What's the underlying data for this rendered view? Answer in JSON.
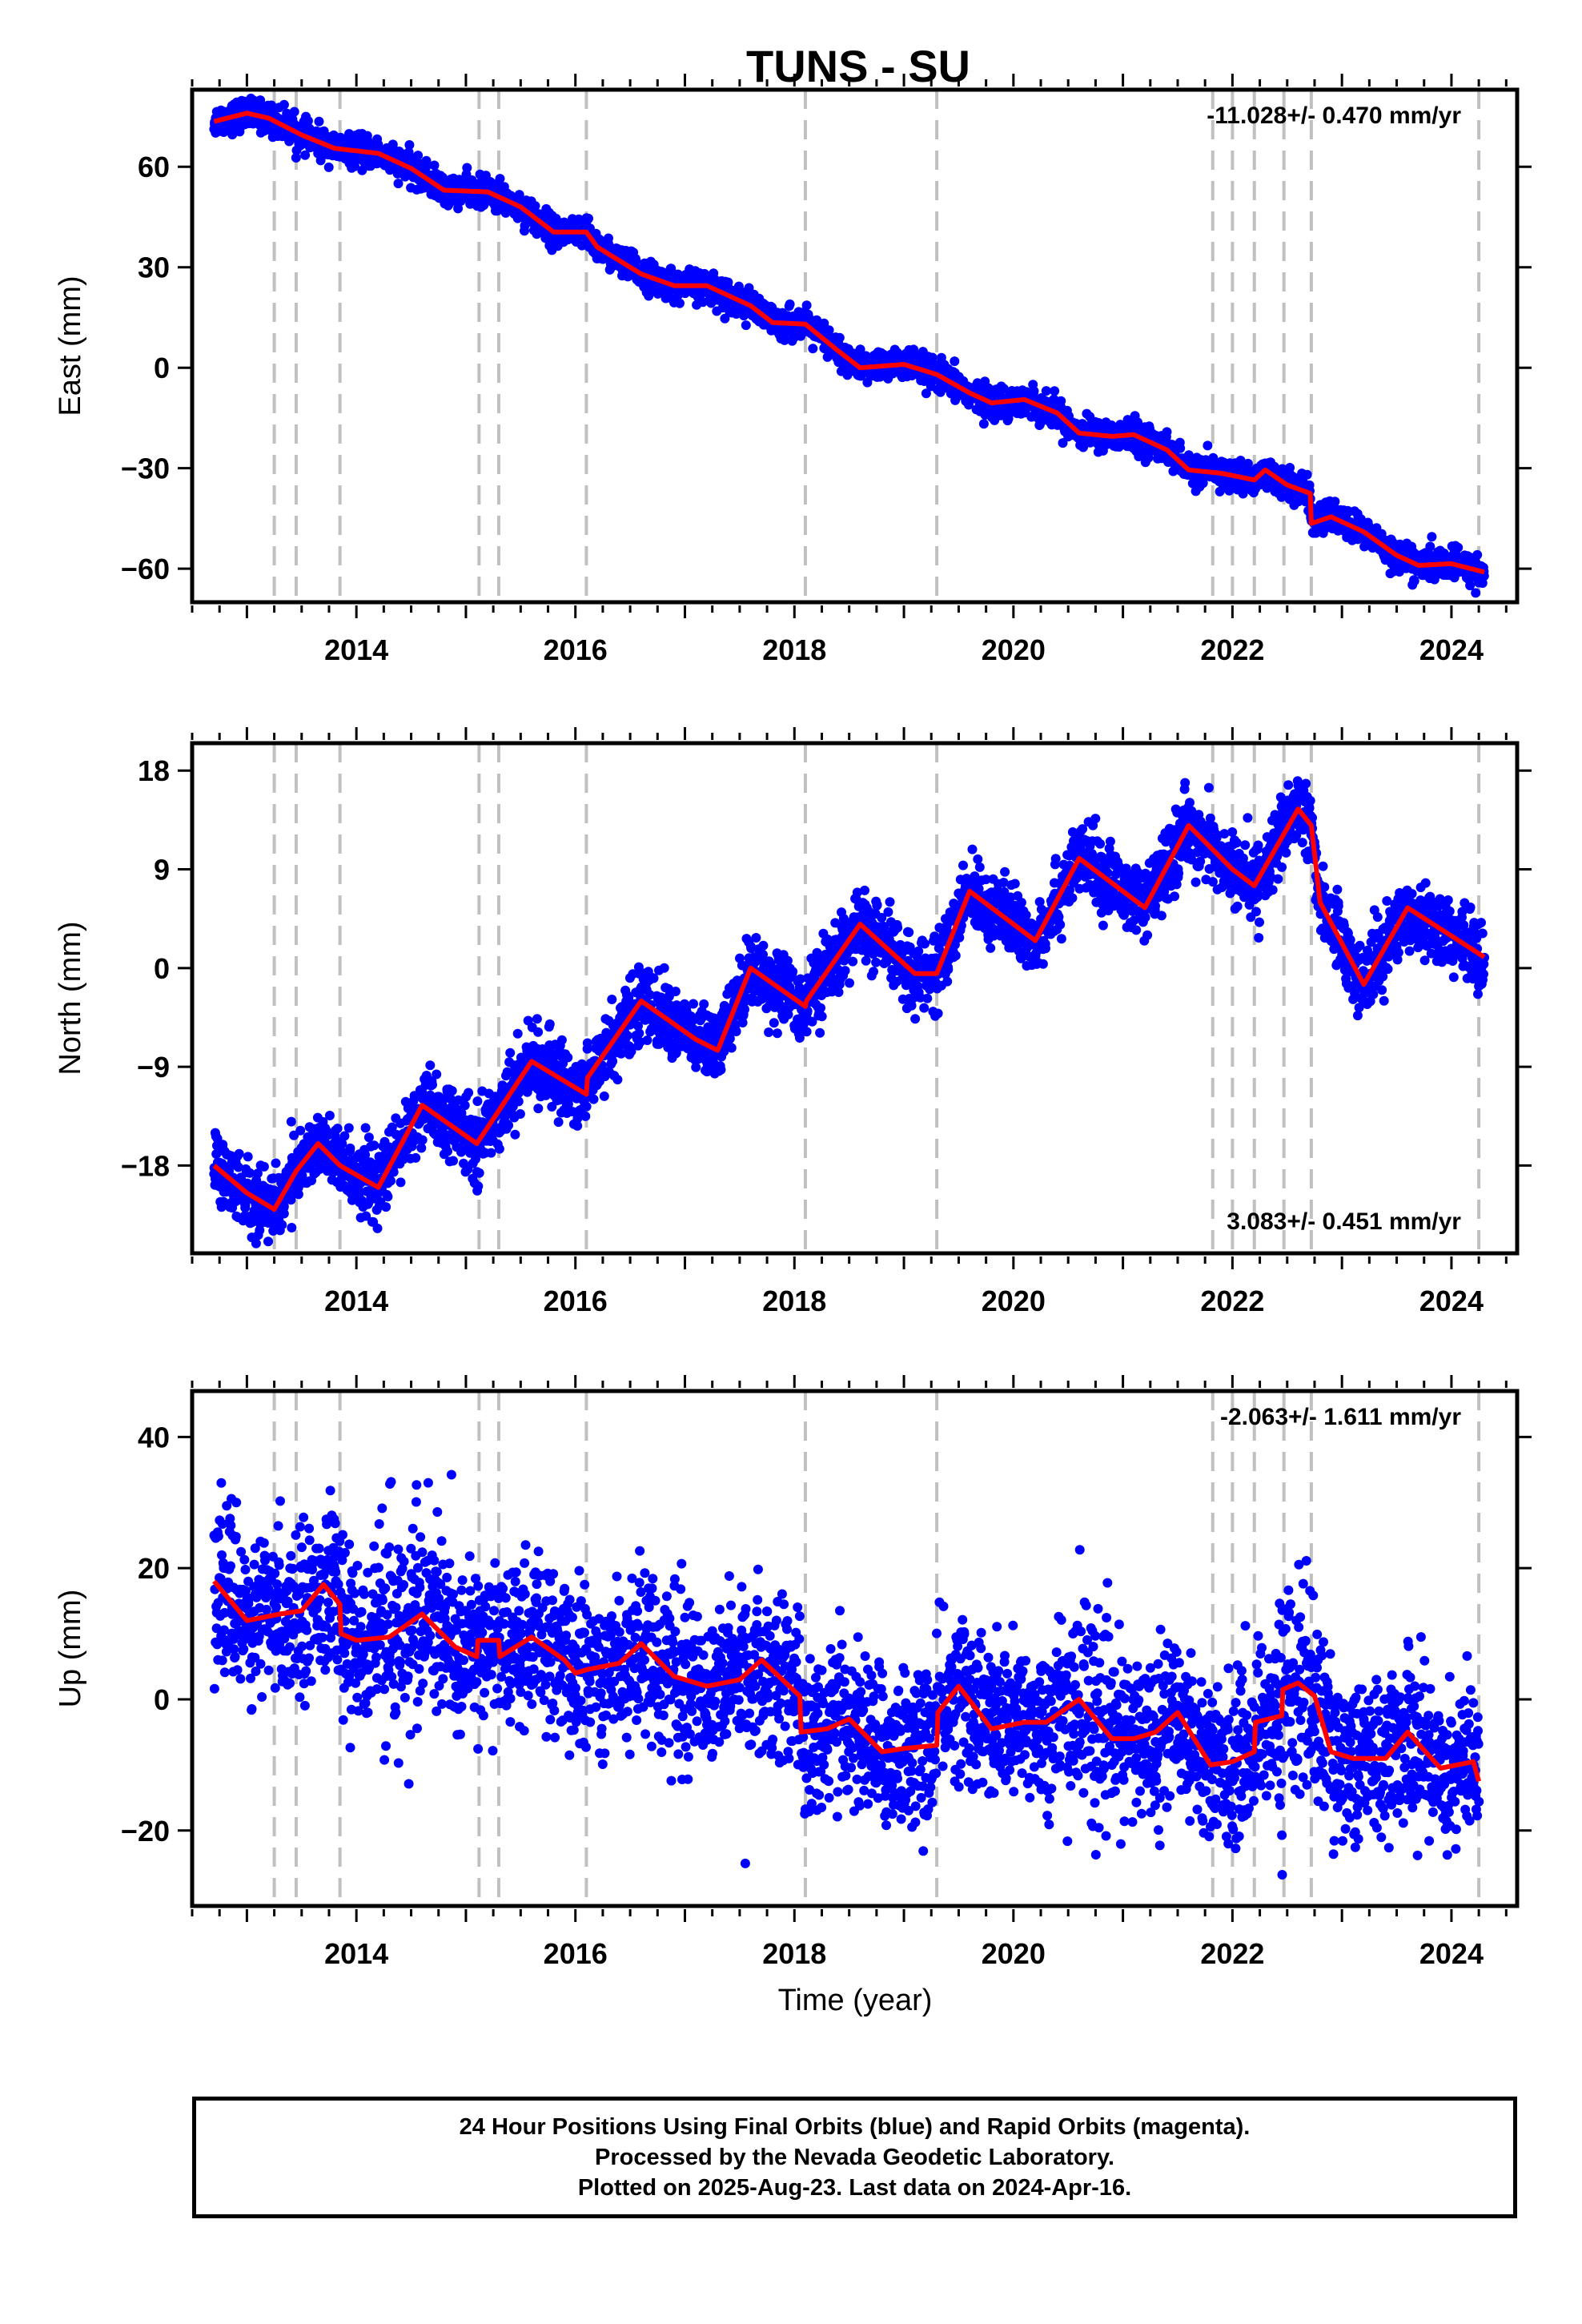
{
  "title": "TUNS - SU",
  "xlabel": "Time (year)",
  "footer": {
    "line1": "24 Hour Positions Using Final Orbits (blue) and Rapid Orbits (magenta).",
    "line2": "Processed by the Nevada Geodetic Laboratory.",
    "line3": "Plotted on 2025-Aug-23. Last data on 2024-Apr-16."
  },
  "colors": {
    "points": "#0000ff",
    "fit": "#ff0000",
    "event_lines": "#c0c0c0",
    "frame": "#000000"
  },
  "chart_data": [
    {
      "type": "scatter",
      "name": "east",
      "ylabel": "East (mm)",
      "xlim": [
        2012.5,
        2024.6
      ],
      "ylim": [
        -70,
        83
      ],
      "xticks": [
        2014,
        2016,
        2018,
        2020,
        2022,
        2024
      ],
      "yticks": [
        -60,
        -30,
        0,
        30,
        60
      ],
      "rate_text": "-11.028+/- 0.470 mm/yr",
      "rate_position": "top-right",
      "fit": [
        [
          2012.7,
          73.5
        ],
        [
          2013.0,
          76.0
        ],
        [
          2013.2,
          74.5
        ],
        [
          2013.5,
          69.5
        ],
        [
          2013.8,
          65.5
        ],
        [
          2014.2,
          64
        ],
        [
          2014.5,
          59.5
        ],
        [
          2014.8,
          53
        ],
        [
          2015.2,
          52.5
        ],
        [
          2015.5,
          48.0
        ],
        [
          2015.8,
          40.5
        ],
        [
          2016.1,
          40.5
        ],
        [
          2016.2,
          36.0
        ],
        [
          2016.6,
          28.0
        ],
        [
          2016.9,
          24.5
        ],
        [
          2017.2,
          24.5
        ],
        [
          2017.6,
          18.5
        ],
        [
          2017.8,
          13.5
        ],
        [
          2018.1,
          13.0
        ],
        [
          2018.4,
          5.0
        ],
        [
          2018.6,
          0.0
        ],
        [
          2019.0,
          1.0
        ],
        [
          2019.3,
          -2.0
        ],
        [
          2019.6,
          -7.5
        ],
        [
          2019.8,
          -10.5
        ],
        [
          2020.1,
          -9.5
        ],
        [
          2020.4,
          -13.5
        ],
        [
          2020.6,
          -19.5
        ],
        [
          2020.9,
          -20.5
        ],
        [
          2021.1,
          -20.0
        ],
        [
          2021.4,
          -24.5
        ],
        [
          2021.6,
          -30.5
        ],
        [
          2021.9,
          -31.5
        ],
        [
          2022.2,
          -33.5
        ],
        [
          2022.3,
          -30.5
        ],
        [
          2022.5,
          -35.0
        ],
        [
          2022.71,
          -37.5
        ],
        [
          2022.72,
          -46.5
        ],
        [
          2022.9,
          -44.5
        ],
        [
          2023.2,
          -49.0
        ],
        [
          2023.5,
          -56.0
        ],
        [
          2023.7,
          -59.0
        ],
        [
          2024.0,
          -58.5
        ],
        [
          2024.3,
          -61.0
        ]
      ],
      "event_lines": [
        2013.25,
        2013.45,
        2013.85,
        2015.12,
        2015.3,
        2016.1,
        2018.1,
        2019.3,
        2021.82,
        2022.0,
        2022.2,
        2022.47,
        2022.72,
        2024.25
      ]
    },
    {
      "type": "scatter",
      "name": "north",
      "ylabel": "North (mm)",
      "xlim": [
        2012.5,
        2024.6
      ],
      "ylim": [
        -26,
        20.5
      ],
      "xticks": [
        2014,
        2016,
        2018,
        2020,
        2022,
        2024
      ],
      "yticks": [
        -18,
        -9,
        0,
        9,
        18
      ],
      "rate_text": "3.083+/- 0.451 mm/yr",
      "rate_position": "bottom-right",
      "fit": [
        [
          2012.7,
          -18.0
        ],
        [
          2013.0,
          -20.5
        ],
        [
          2013.25,
          -22.0
        ],
        [
          2013.45,
          -18.5
        ],
        [
          2013.65,
          -16.0
        ],
        [
          2013.85,
          -18.0
        ],
        [
          2014.2,
          -20.0
        ],
        [
          2014.6,
          -12.5
        ],
        [
          2015.1,
          -16.0
        ],
        [
          2015.3,
          -13.0
        ],
        [
          2015.6,
          -8.5
        ],
        [
          2016.1,
          -11.5
        ],
        [
          2016.11,
          -10.0
        ],
        [
          2016.6,
          -3.0
        ],
        [
          2017.1,
          -6.5
        ],
        [
          2017.3,
          -7.5
        ],
        [
          2017.6,
          0.0
        ],
        [
          2018.1,
          -3.5
        ],
        [
          2018.11,
          -3.0
        ],
        [
          2018.6,
          4.0
        ],
        [
          2019.1,
          -0.5
        ],
        [
          2019.3,
          -0.5
        ],
        [
          2019.6,
          7.0
        ],
        [
          2020.2,
          2.5
        ],
        [
          2020.6,
          10.0
        ],
        [
          2021.2,
          5.5
        ],
        [
          2021.6,
          13.0
        ],
        [
          2021.85,
          10.5
        ],
        [
          2022.0,
          9.0
        ],
        [
          2022.2,
          7.5
        ],
        [
          2022.6,
          14.5
        ],
        [
          2022.72,
          13.0
        ],
        [
          2022.8,
          6.0
        ],
        [
          2023.2,
          -1.5
        ],
        [
          2023.6,
          5.5
        ],
        [
          2024.3,
          1.0
        ]
      ],
      "event_lines": [
        2013.25,
        2013.45,
        2013.85,
        2015.12,
        2015.3,
        2016.1,
        2018.1,
        2019.3,
        2021.82,
        2022.0,
        2022.2,
        2022.47,
        2022.72,
        2024.25
      ]
    },
    {
      "type": "scatter",
      "name": "up",
      "ylabel": "Up (mm)",
      "xlim": [
        2012.5,
        2024.6
      ],
      "ylim": [
        -31.5,
        47
      ],
      "xticks": [
        2014,
        2016,
        2018,
        2020,
        2022,
        2024
      ],
      "yticks": [
        -20,
        0,
        20,
        40
      ],
      "rate_text": "-2.063+/- 1.611 mm/yr",
      "rate_position": "top-right",
      "fit": [
        [
          2012.7,
          18.0
        ],
        [
          2013.0,
          12.0
        ],
        [
          2013.3,
          13.0
        ],
        [
          2013.5,
          13.5
        ],
        [
          2013.7,
          17.5
        ],
        [
          2013.85,
          14.5
        ],
        [
          2013.86,
          10.0
        ],
        [
          2014.0,
          9.0
        ],
        [
          2014.3,
          9.5
        ],
        [
          2014.6,
          13.0
        ],
        [
          2014.9,
          8.0
        ],
        [
          2015.1,
          6.5
        ],
        [
          2015.11,
          9.0
        ],
        [
          2015.3,
          9.0
        ],
        [
          2015.31,
          6.5
        ],
        [
          2015.6,
          9.5
        ],
        [
          2015.9,
          6.0
        ],
        [
          2016.0,
          4.0
        ],
        [
          2016.1,
          4.5
        ],
        [
          2016.4,
          5.5
        ],
        [
          2016.6,
          8.5
        ],
        [
          2016.9,
          3.5
        ],
        [
          2017.2,
          2.0
        ],
        [
          2017.5,
          3.0
        ],
        [
          2017.7,
          6.0
        ],
        [
          2018.05,
          0.5
        ],
        [
          2018.06,
          -5.0
        ],
        [
          2018.3,
          -4.5
        ],
        [
          2018.5,
          -3.0
        ],
        [
          2018.8,
          -8.0
        ],
        [
          2019.0,
          -7.5
        ],
        [
          2019.3,
          -7.0
        ],
        [
          2019.31,
          -2.0
        ],
        [
          2019.5,
          2.0
        ],
        [
          2019.8,
          -4.5
        ],
        [
          2020.1,
          -3.5
        ],
        [
          2020.3,
          -3.5
        ],
        [
          2020.6,
          0.0
        ],
        [
          2020.9,
          -6.0
        ],
        [
          2021.1,
          -6.0
        ],
        [
          2021.3,
          -5.0
        ],
        [
          2021.5,
          -2.0
        ],
        [
          2021.8,
          -10.0
        ],
        [
          2022.0,
          -9.5
        ],
        [
          2022.2,
          -8.0
        ],
        [
          2022.21,
          -3.5
        ],
        [
          2022.45,
          -2.5
        ],
        [
          2022.46,
          1.5
        ],
        [
          2022.6,
          2.5
        ],
        [
          2022.75,
          0.5
        ],
        [
          2022.9,
          -8.0
        ],
        [
          2023.1,
          -9.0
        ],
        [
          2023.4,
          -9.0
        ],
        [
          2023.6,
          -5.0
        ],
        [
          2023.9,
          -10.5
        ],
        [
          2024.2,
          -9.5
        ],
        [
          2024.25,
          -12.5
        ]
      ],
      "event_lines": [
        2013.25,
        2013.45,
        2013.85,
        2015.12,
        2015.3,
        2016.1,
        2018.1,
        2019.3,
        2021.82,
        2022.0,
        2022.2,
        2022.47,
        2022.72,
        2024.25
      ]
    }
  ]
}
